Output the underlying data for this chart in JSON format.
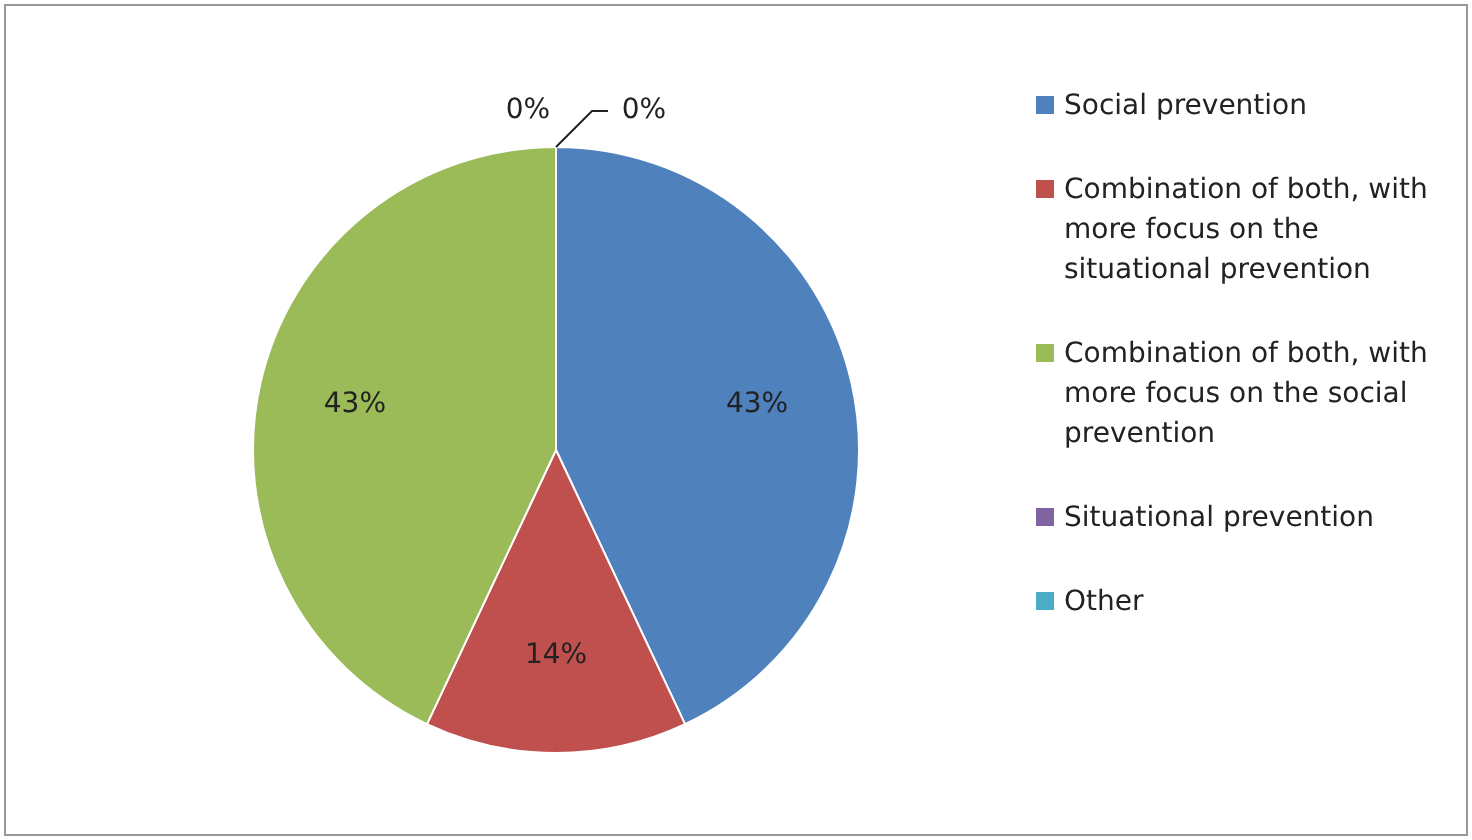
{
  "chart_data": {
    "type": "pie",
    "categories": [
      "Social prevention",
      "Combination of both, with more focus on the situational prevention",
      "Combination of both, with more focus on the social prevention",
      "Situational prevention",
      "Other"
    ],
    "values": [
      43,
      14,
      43,
      0,
      0
    ],
    "colors": [
      "#4f81bd",
      "#c0504d",
      "#9bbb59",
      "#8064a2",
      "#4bacc6"
    ],
    "value_labels": [
      "43%",
      "14%",
      "43%",
      "0%",
      "0%"
    ],
    "legend": "right"
  }
}
